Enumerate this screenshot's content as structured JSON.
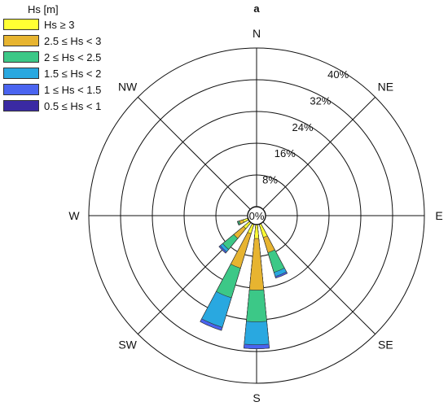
{
  "chart_data": {
    "type": "windrose",
    "title": "a",
    "legend_title": "Hs [m]",
    "legend_placement": "top-left",
    "directions": [
      "N",
      "NE",
      "E",
      "SE",
      "S",
      "SW",
      "W",
      "NW"
    ],
    "ring_labels": [
      "0%",
      "8%",
      "16%",
      "24%",
      "32%",
      "40%"
    ],
    "rings_percent": [
      8,
      16,
      24,
      32,
      40
    ],
    "r_max_percent": 40,
    "bins": [
      {
        "label": "Hs ≥ 3",
        "color": "#ffff33"
      },
      {
        "label": "2.5 ≤ Hs < 3",
        "color": "#e7b430"
      },
      {
        "label": "2 ≤ Hs < 2.5",
        "color": "#3cc887"
      },
      {
        "label": "1.5 ≤ Hs < 2",
        "color": "#29a8e0"
      },
      {
        "label": "1 ≤ Hs < 1.5",
        "color": "#4a64f0"
      },
      {
        "label": "0.5 ≤ Hs < 1",
        "color": "#3a2aa3"
      }
    ],
    "sectors": [
      {
        "direction_deg": 157.5,
        "cumulative_percent": [
          3.5,
          7.5,
          12.7,
          13.8,
          14.2,
          14.2
        ]
      },
      {
        "direction_deg": 180,
        "cumulative_percent": [
          3.5,
          16.5,
          24.5,
          30.3,
          31.3,
          31.3
        ]
      },
      {
        "direction_deg": 202.5,
        "cumulative_percent": [
          2.5,
          11.6,
          19.4,
          27.2,
          28.0,
          28.0
        ]
      },
      {
        "direction_deg": 225,
        "cumulative_percent": [
          2.0,
          5.2,
          8.8,
          9.6,
          10.0,
          10.0
        ]
      },
      {
        "direction_deg": 247.5,
        "cumulative_percent": [
          1.3,
          2.3,
          2.7,
          2.8,
          2.8,
          2.8
        ]
      }
    ]
  }
}
